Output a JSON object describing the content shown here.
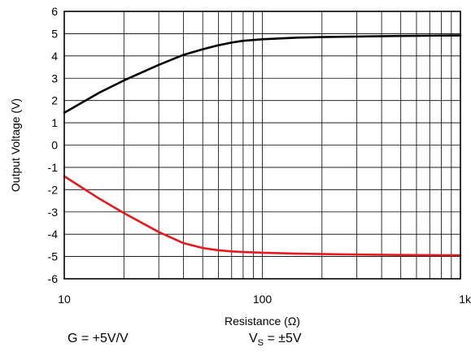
{
  "chart_data": {
    "type": "line",
    "title": "",
    "xlabel": "Resistance (Ω)",
    "ylabel": "Output Voltage (V)",
    "xscale": "log",
    "xlim": [
      10,
      1000
    ],
    "ylim": [
      -6,
      6
    ],
    "x_ticks": [
      10,
      100,
      1000
    ],
    "x_tick_labels": [
      "10",
      "100",
      "1k"
    ],
    "y_ticks": [
      6,
      5,
      4,
      3,
      2,
      1,
      0,
      -1,
      -2,
      -3,
      -4,
      -5,
      -6
    ],
    "y_tick_labels": [
      "6",
      "5",
      "4",
      "3",
      "2",
      "1",
      "0",
      "-1",
      "-2",
      "-3",
      "-4",
      "-5",
      "-6"
    ],
    "grid": true,
    "series": [
      {
        "color": "#000000",
        "x": [
          10,
          15,
          20,
          30,
          40,
          50,
          60,
          70,
          80,
          100,
          150,
          200,
          300,
          500,
          700,
          1000
        ],
        "y": [
          1.45,
          2.35,
          2.9,
          3.6,
          4.05,
          4.3,
          4.48,
          4.6,
          4.68,
          4.75,
          4.82,
          4.85,
          4.87,
          4.9,
          4.91,
          4.92
        ]
      },
      {
        "color": "#e8191e",
        "x": [
          10,
          15,
          20,
          30,
          40,
          50,
          60,
          70,
          80,
          100,
          150,
          200,
          300,
          500,
          700,
          1000
        ],
        "y": [
          -1.4,
          -2.4,
          -3.05,
          -3.9,
          -4.4,
          -4.62,
          -4.72,
          -4.77,
          -4.8,
          -4.83,
          -4.87,
          -4.89,
          -4.91,
          -4.93,
          -4.94,
          -4.95
        ]
      }
    ]
  },
  "conditions": {
    "gain_text": "G = +5V/V",
    "supply_prefix": "V",
    "supply_sub": "S",
    "supply_suffix": " = ±5V"
  }
}
